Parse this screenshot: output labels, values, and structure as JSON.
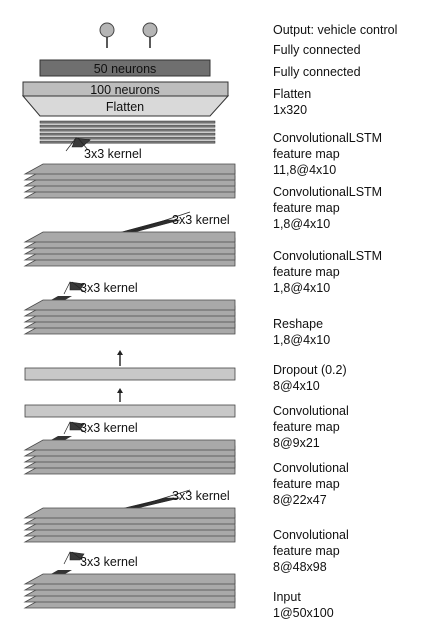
{
  "diagram": {
    "output_title": "Output: vehicle control",
    "layers": [
      {
        "id": "fc1",
        "lines": [
          "Fully connected"
        ]
      },
      {
        "id": "fc2",
        "lines": [
          "Fully connected"
        ]
      },
      {
        "id": "flatten",
        "lines": [
          "Flatten",
          "1x320"
        ]
      },
      {
        "id": "clstm3",
        "lines": [
          "ConvolutionalLSTM",
          "feature map",
          "11,8@4x10"
        ]
      },
      {
        "id": "clstm2",
        "lines": [
          "ConvolutionalLSTM",
          "feature map",
          "1,8@4x10"
        ]
      },
      {
        "id": "clstm1",
        "lines": [
          "ConvolutionalLSTM",
          "feature map",
          "1,8@4x10"
        ]
      },
      {
        "id": "reshape",
        "lines": [
          "Reshape",
          "1,8@4x10"
        ]
      },
      {
        "id": "dropout",
        "lines": [
          "Dropout (0.2)",
          "8@4x10"
        ]
      },
      {
        "id": "conv3",
        "lines": [
          "Convolutional",
          "feature map",
          "8@9x21"
        ]
      },
      {
        "id": "conv2",
        "lines": [
          "Convolutional",
          "feature map",
          "8@22x47"
        ]
      },
      {
        "id": "conv1",
        "lines": [
          "Convolutional",
          "feature map",
          "8@48x98"
        ]
      },
      {
        "id": "input",
        "lines": [
          "Input",
          "1@50x100"
        ]
      }
    ],
    "box_labels": {
      "fc1": "50 neurons",
      "fc2": "100 neurons",
      "flatten": "Flatten"
    },
    "kernel_label": "3x3 kernel",
    "colors": {
      "layer_fill": "#a9a9a9",
      "layer_stroke": "#4a4a4a",
      "fc1_fill": "#6f6f6f",
      "fc2_fill": "#bdbdbd",
      "flatten_fill": "#d0d0d0",
      "bar_fill": "#c8c8c8",
      "output_node": "#b5b5b5"
    }
  }
}
